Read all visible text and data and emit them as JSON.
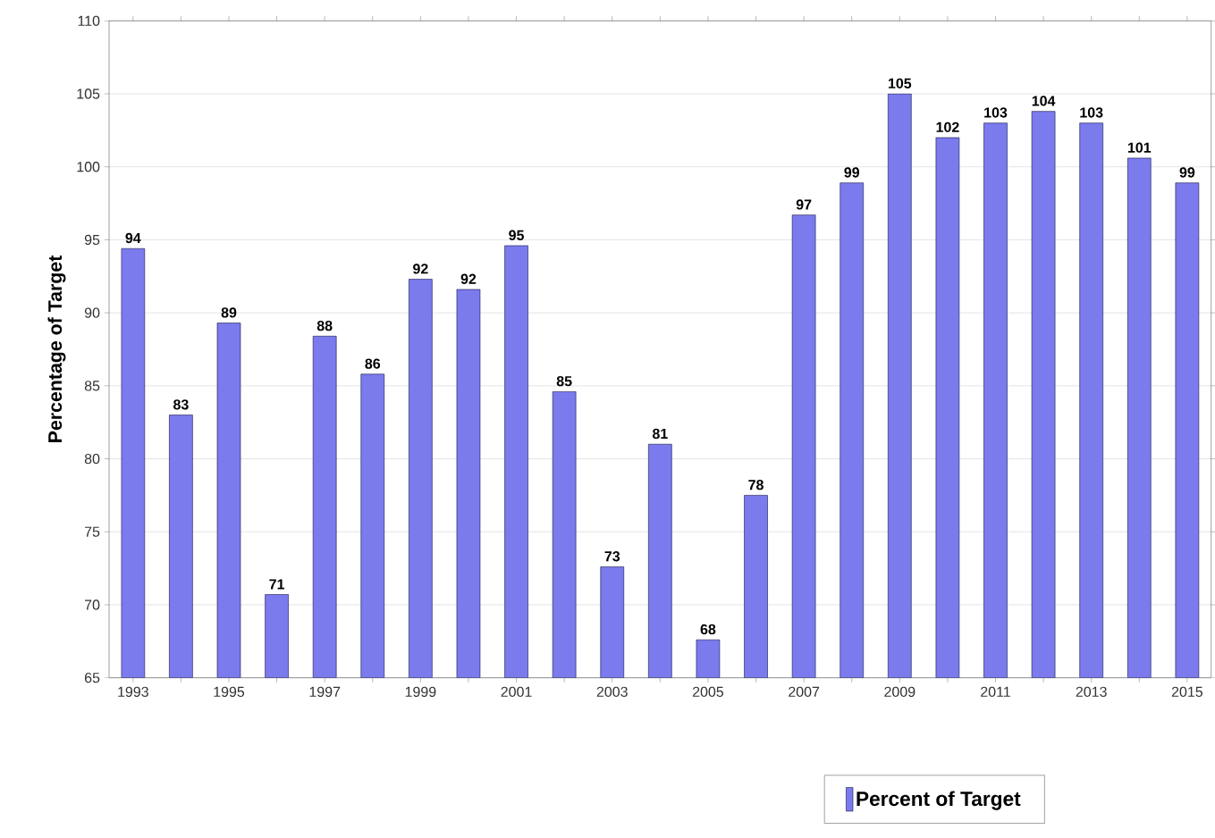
{
  "chart_data": {
    "type": "bar",
    "ylabel": "Percentage of Target",
    "categories": [
      "1993",
      null,
      "1995",
      null,
      "1997",
      null,
      "1999",
      null,
      "2001",
      null,
      "2003",
      null,
      "2005",
      null,
      "2007",
      null,
      "2009",
      null,
      "2011",
      null,
      "2013",
      null,
      "2015"
    ],
    "series": [
      {
        "name": "Percent of Target",
        "color": "#7b7bee",
        "values": [
          94.4,
          83.0,
          89.3,
          70.7,
          88.4,
          85.8,
          92.3,
          91.6,
          94.6,
          84.6,
          72.6,
          81.0,
          67.6,
          77.5,
          96.7,
          98.9,
          105.0,
          102.0,
          103.0,
          103.8,
          103.0,
          100.6,
          98.9
        ],
        "value_labels": [
          "94",
          "83",
          "89",
          "71",
          "88",
          "86",
          "92",
          "92",
          "95",
          "85",
          "73",
          "81",
          "68",
          "78",
          "97",
          "99",
          "105",
          "102",
          "103",
          "104",
          "103",
          "101",
          "99"
        ]
      }
    ],
    "ylim": [
      65,
      110
    ],
    "yticks": [
      65,
      70,
      75,
      80,
      85,
      90,
      95,
      100,
      105,
      110
    ],
    "grid": "y",
    "legend": "bottom right"
  }
}
